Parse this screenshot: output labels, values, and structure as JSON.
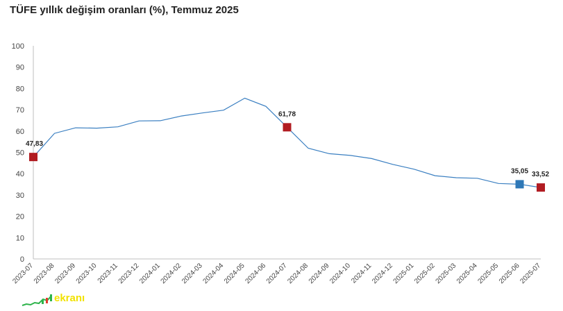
{
  "chart_data": {
    "type": "line",
    "title": "TÜFE yıllık değişim oranları (%), Temmuz 2025",
    "categories": [
      "2023-07",
      "2023-08",
      "2023-09",
      "2023-10",
      "2023-11",
      "2023-12",
      "2024-01",
      "2024-02",
      "2024-03",
      "2024-04",
      "2024-05",
      "2024-06",
      "2024-07",
      "2024-08",
      "2024-09",
      "2024-10",
      "2024-11",
      "2024-12",
      "2025-01",
      "2025-02",
      "2025-03",
      "2025-04",
      "2025-05",
      "2025-06",
      "2025-07"
    ],
    "series": [
      {
        "values": [
          47.83,
          58.94,
          61.53,
          61.36,
          61.98,
          64.77,
          64.86,
          67.07,
          68.5,
          69.8,
          75.45,
          71.6,
          61.78,
          51.97,
          49.38,
          48.58,
          47.09,
          44.38,
          42.12,
          39.05,
          38.1,
          37.86,
          35.41,
          35.05,
          33.52
        ],
        "color": "#3a7fc1"
      }
    ],
    "highlights": [
      {
        "index": 0,
        "label": "47,83",
        "color": "#b11c22"
      },
      {
        "index": 12,
        "label": "61,78",
        "color": "#b11c22"
      },
      {
        "index": 23,
        "label": "35,05",
        "color": "#2e78b7"
      },
      {
        "index": 24,
        "label": "33,52",
        "color": "#b11c22"
      }
    ],
    "ylim": [
      0,
      100
    ],
    "yticks": [
      0,
      10,
      20,
      30,
      40,
      50,
      60,
      70,
      80,
      90,
      100
    ],
    "xlabel": "",
    "ylabel": "",
    "grid": false,
    "legend": "none"
  },
  "logo": {
    "text": "ekranı",
    "accent": "#f2e200",
    "name": "logo"
  }
}
